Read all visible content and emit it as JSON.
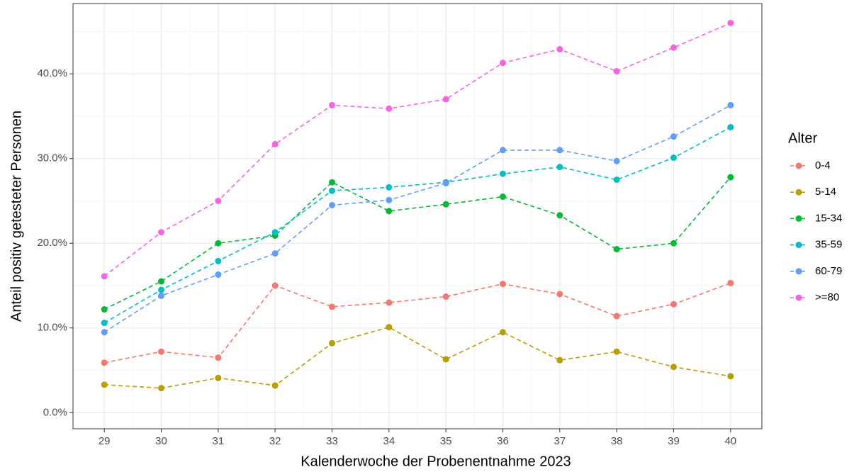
{
  "chart_data": {
    "type": "line",
    "x_label": "Kalenderwoche der Probenentnahme 2023",
    "y_label": "Anteil positiv getesteter Personen",
    "x": [
      29,
      30,
      31,
      32,
      33,
      34,
      35,
      36,
      37,
      38,
      39,
      40
    ],
    "xlim": [
      28.45,
      40.55
    ],
    "xticks": [
      29,
      30,
      31,
      32,
      33,
      34,
      35,
      36,
      37,
      38,
      39,
      40
    ],
    "ylim": [
      -1.9,
      48.3
    ],
    "yticks": [
      {
        "value": 0,
        "label": "0.0%"
      },
      {
        "value": 10,
        "label": "10.0%"
      },
      {
        "value": 20,
        "label": "20.0%"
      },
      {
        "value": 30,
        "label": "30.0%"
      },
      {
        "value": 40,
        "label": "40.0%"
      }
    ],
    "grid": true,
    "minor_grid": true,
    "line_style": "dashed",
    "legend_title": "Alter",
    "legend_position": "right",
    "series": [
      {
        "name": "0-4",
        "color": "#F8766D",
        "values": [
          5.9,
          7.2,
          6.5,
          15.0,
          12.5,
          13.0,
          13.7,
          15.2,
          14.0,
          11.4,
          12.8,
          15.3
        ]
      },
      {
        "name": "5-14",
        "color": "#B79F00",
        "values": [
          3.3,
          2.9,
          4.1,
          3.2,
          8.2,
          10.1,
          6.3,
          9.5,
          6.2,
          7.2,
          5.4,
          4.3
        ]
      },
      {
        "name": "15-34",
        "color": "#00BA38",
        "values": [
          12.2,
          15.5,
          20.0,
          20.9,
          27.2,
          23.8,
          24.6,
          25.5,
          23.3,
          19.3,
          20.0,
          27.8
        ]
      },
      {
        "name": "35-59",
        "color": "#00BFC4",
        "values": [
          10.6,
          14.5,
          17.9,
          21.3,
          26.2,
          26.6,
          27.2,
          28.2,
          29.0,
          27.5,
          30.1,
          33.7
        ]
      },
      {
        "name": "60-79",
        "color": "#619CFF",
        "values": [
          9.5,
          13.8,
          16.3,
          18.8,
          24.5,
          25.1,
          27.1,
          31.0,
          31.0,
          29.7,
          32.6,
          36.3
        ]
      },
      {
        "name": ">=80",
        "color": "#F564E3",
        "values": [
          16.1,
          21.3,
          25.0,
          31.7,
          36.3,
          35.9,
          37.0,
          41.3,
          42.9,
          40.3,
          43.1,
          46.0
        ]
      }
    ]
  }
}
